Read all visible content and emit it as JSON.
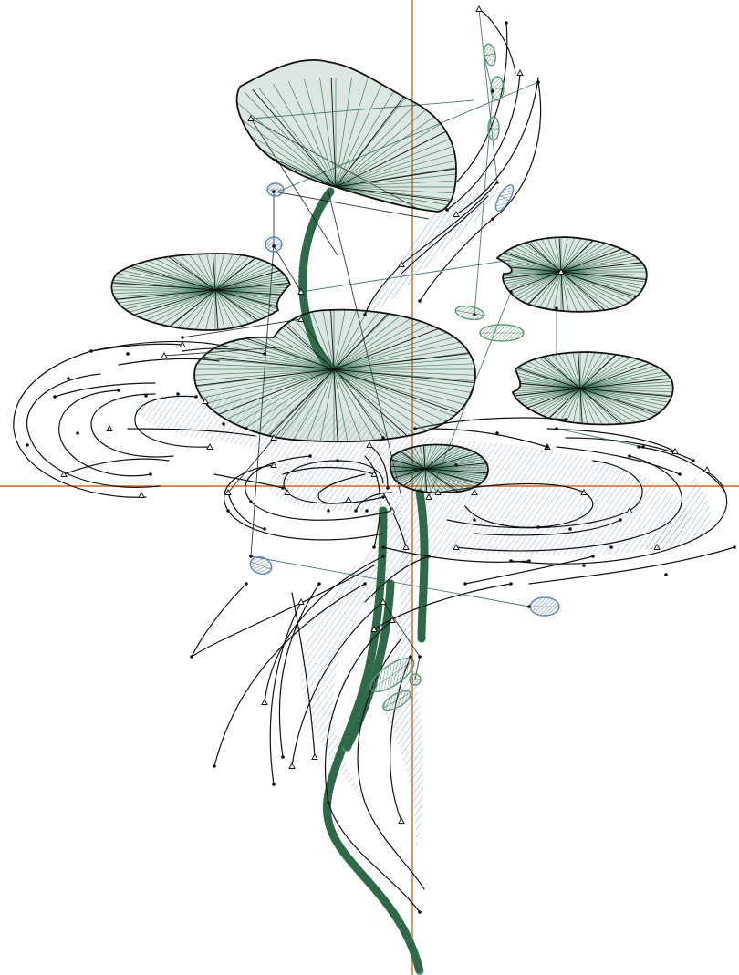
{
  "design": {
    "colors": {
      "background": "#ffffff",
      "outline": "#111111",
      "leaf_fill": "#3f7a5a",
      "leaf_hatch": "#2f6a4c",
      "stem_fill": "#6aa283",
      "water_hatch": "#6f93c6",
      "water_fill": "#b9cbe6",
      "fish_blue": "#5f86b4",
      "fish_green": "#5c9a74",
      "guide_line": "#d2691e",
      "connector": "#2e5d62"
    },
    "objects": {
      "lily_pads": 6,
      "fish": 14,
      "water_strokes": 60
    }
  }
}
